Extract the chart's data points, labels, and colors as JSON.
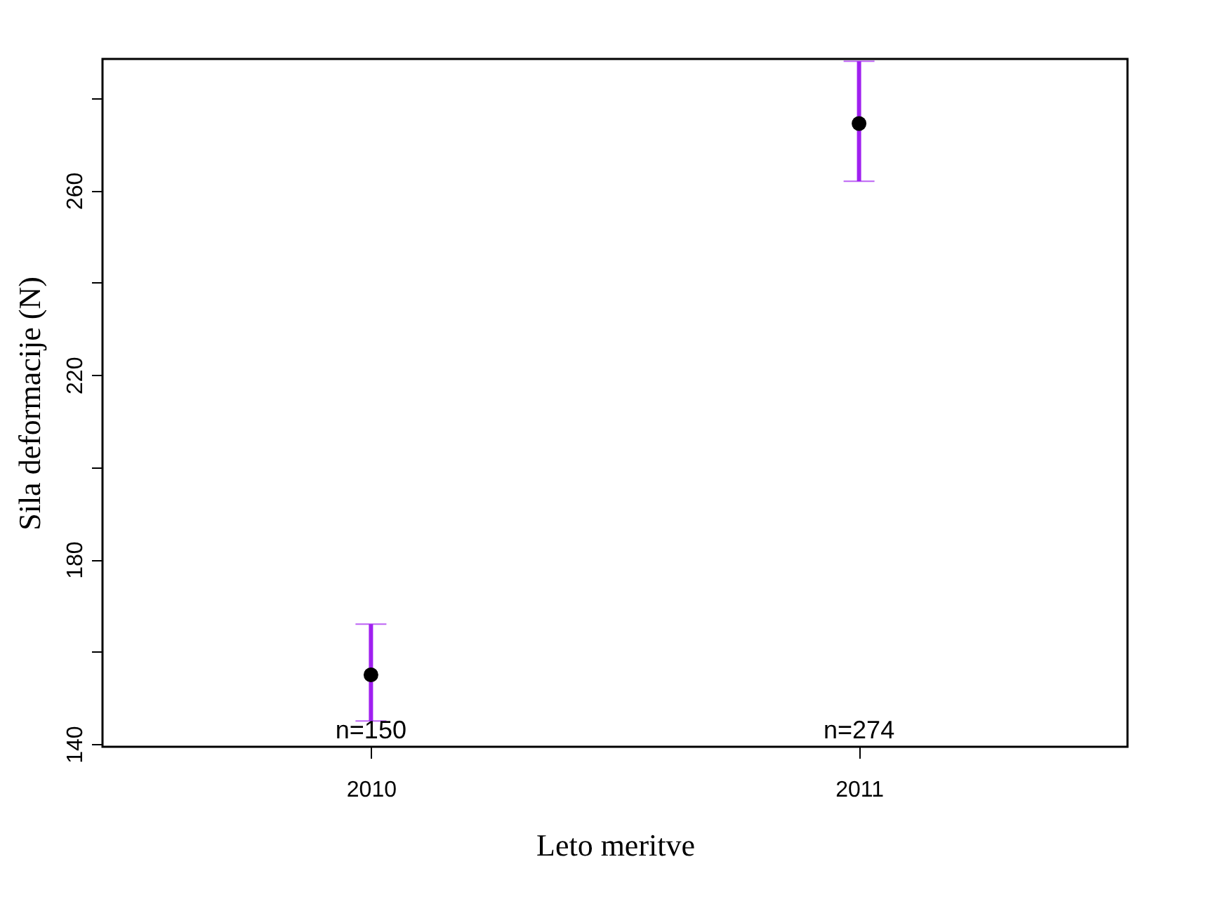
{
  "chart_data": {
    "type": "scatter",
    "xlabel": "Leto meritve",
    "ylabel": "Sila deformacije (N)",
    "categories": [
      "2010",
      "2011"
    ],
    "values": [
      155,
      274.5
    ],
    "errors": [
      [
        145,
        166
      ],
      [
        262,
        288
      ]
    ],
    "color": "#000000",
    "marker": "circle",
    "grid": false,
    "ylim": [
      139.4,
      288.5
    ],
    "yticks": [
      140,
      {
        "value": 160,
        "label": null
      },
      180,
      {
        "value": 200,
        "label": null
      },
      220,
      {
        "value": 240,
        "label": null
      },
      260,
      {
        "value": 280,
        "label": null
      }
    ],
    "annotations": [
      "n=150",
      "n=274"
    ]
  }
}
